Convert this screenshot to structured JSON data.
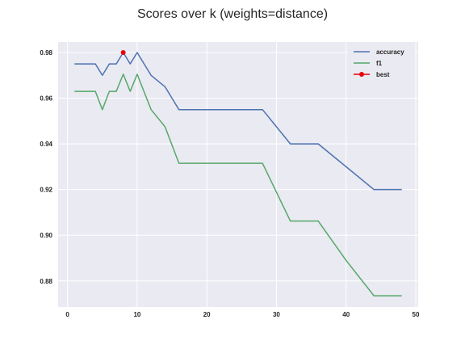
{
  "chart_data": {
    "type": "line",
    "title": "Scores over k (weights=distance)",
    "xlabel": "",
    "ylabel": "",
    "xlim": [
      -1.35,
      50.35
    ],
    "ylim": [
      0.8686,
      0.9846
    ],
    "x_ticks": [
      0,
      10,
      20,
      30,
      40,
      50
    ],
    "y_ticks": [
      0.88,
      0.9,
      0.92,
      0.94,
      0.96,
      0.98
    ],
    "x_tick_labels": [
      "0",
      "10",
      "20",
      "30",
      "40",
      "50"
    ],
    "y_tick_labels": [
      "0.88",
      "0.90",
      "0.92",
      "0.94",
      "0.96",
      "0.98"
    ],
    "grid": true,
    "legend_position": "top-right",
    "series": [
      {
        "name": "accuracy",
        "color": "#4c72b0",
        "x": [
          1,
          2,
          3,
          4,
          5,
          6,
          7,
          8,
          9,
          10,
          12,
          14,
          16,
          20,
          24,
          28,
          32,
          36,
          40,
          44,
          48
        ],
        "y": [
          0.975,
          0.975,
          0.975,
          0.975,
          0.97,
          0.975,
          0.975,
          0.98,
          0.975,
          0.98,
          0.97,
          0.965,
          0.955,
          0.955,
          0.955,
          0.955,
          0.94,
          0.94,
          0.93,
          0.92,
          0.92
        ]
      },
      {
        "name": "f1",
        "color": "#55a868",
        "x": [
          1,
          2,
          3,
          4,
          5,
          6,
          7,
          8,
          9,
          10,
          12,
          14,
          16,
          20,
          24,
          28,
          32,
          36,
          40,
          44,
          48
        ],
        "y": [
          0.963,
          0.963,
          0.963,
          0.963,
          0.955,
          0.963,
          0.963,
          0.9705,
          0.963,
          0.9705,
          0.955,
          0.9475,
          0.9315,
          0.9315,
          0.9315,
          0.9315,
          0.9062,
          0.9062,
          0.889,
          0.8735,
          0.8735
        ]
      },
      {
        "name": "best",
        "color": "#e8000b",
        "marker": true,
        "x": [
          8
        ],
        "y": [
          0.98
        ]
      }
    ]
  }
}
